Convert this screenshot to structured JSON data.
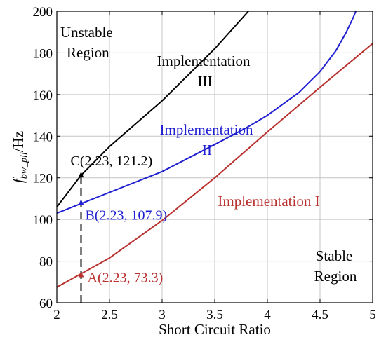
{
  "chart_data": {
    "type": "line",
    "title": "",
    "xlabel": "Short Circuit Ratio",
    "ylabel": {
      "main": "f",
      "sub": "bw_pll",
      "unit": "/Hz"
    },
    "xlim": [
      2,
      5
    ],
    "ylim": [
      60,
      200
    ],
    "xticks": [
      2,
      2.5,
      3,
      3.5,
      4,
      4.5,
      5
    ],
    "xtick_labels": [
      "2",
      "2.5",
      "3",
      "3.5",
      "4",
      "4.5",
      "5"
    ],
    "yticks": [
      60,
      80,
      100,
      120,
      140,
      160,
      180,
      200
    ],
    "ytick_labels": [
      "60",
      "80",
      "100",
      "120",
      "140",
      "160",
      "180",
      "200"
    ],
    "grid": true,
    "series": [
      {
        "name": "Implementation I",
        "color": "#b8312f",
        "x": [
          2.0,
          2.5,
          3.0,
          3.5,
          4.0,
          4.5,
          5.0
        ],
        "y": [
          67.5,
          81.5,
          99.5,
          120.0,
          142.0,
          163.5,
          184.5
        ]
      },
      {
        "name": "Implementation II",
        "color": "#1f1fd1",
        "x": [
          2.0,
          2.5,
          3.0,
          3.5,
          3.8,
          4.0,
          4.3,
          4.5,
          4.65,
          4.75,
          4.82,
          4.84
        ],
        "y": [
          103.0,
          113.0,
          123.0,
          136.0,
          144.0,
          150.0,
          161.0,
          171.0,
          181.0,
          190.0,
          197.5,
          200.0
        ]
      },
      {
        "name": "Implementation III",
        "color": "#000000",
        "x": [
          2.0,
          2.23,
          2.5,
          3.0,
          3.5,
          3.82
        ],
        "y": [
          106.0,
          121.2,
          135.0,
          157.0,
          182.0,
          200.0
        ]
      }
    ],
    "annotations": [
      {
        "text": "Unstable",
        "color": "#000000"
      },
      {
        "text": "Region",
        "color": "#000000"
      },
      {
        "text": "Stable",
        "color": "#000000"
      },
      {
        "text": "Region",
        "color": "#000000"
      },
      {
        "text": "Implementation",
        "color": "#000000"
      },
      {
        "text": "III",
        "color": "#000000"
      },
      {
        "text": "Implementation",
        "color": "#1f1fd1"
      },
      {
        "text": "II",
        "color": "#1f1fd1"
      },
      {
        "text": "Implementation I",
        "color": "#b8312f"
      }
    ],
    "markers": [
      {
        "x": 2.23,
        "y": 121.2,
        "label": "C(2.23, 121.2)",
        "color": "#000000"
      },
      {
        "x": 2.23,
        "y": 107.9,
        "label": "B(2.23, 107.9)",
        "color": "#1f1fd1"
      },
      {
        "x": 2.23,
        "y": 73.3,
        "label": "A(2.23, 73.3)",
        "color": "#b8312f"
      }
    ],
    "reference_line": {
      "x": 2.23,
      "style": "dashed",
      "color": "#000000"
    }
  }
}
